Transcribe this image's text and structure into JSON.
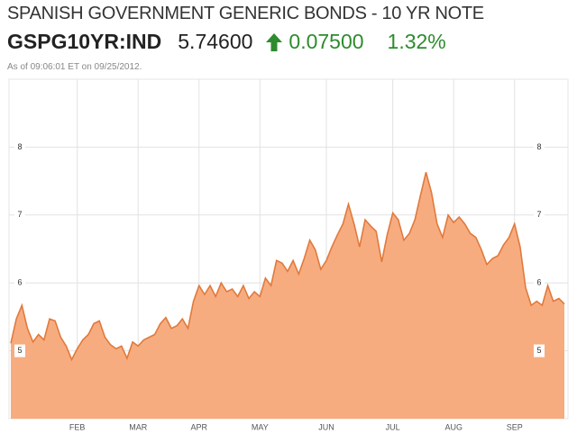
{
  "header": {
    "title": "SPANISH GOVERNMENT GENERIC BONDS - 10 YR NOTE",
    "ticker": "GSPG10YR:IND",
    "price": "5.74600",
    "change": "0.07500",
    "change_percent": "1.32%",
    "as_of": "As of 09:06:01 ET on 09/25/2012."
  },
  "chart_data": {
    "type": "area",
    "color": "#f7ac80",
    "line_color": "#e07a3c",
    "categories": [
      null,
      null,
      null,
      null,
      null,
      null,
      null,
      null,
      null,
      null,
      null,
      null,
      "FEB",
      null,
      null,
      null,
      null,
      null,
      null,
      null,
      null,
      null,
      null,
      "MAR",
      null,
      null,
      null,
      null,
      null,
      null,
      null,
      null,
      null,
      null,
      "APR",
      null,
      null,
      null,
      null,
      null,
      null,
      null,
      null,
      null,
      null,
      "MAY",
      null,
      null,
      null,
      null,
      null,
      null,
      null,
      null,
      null,
      null,
      null,
      "JUN",
      null,
      null,
      null,
      null,
      null,
      null,
      null,
      null,
      null,
      null,
      null,
      "JUL",
      null,
      null,
      null,
      null,
      null,
      null,
      null,
      null,
      null,
      null,
      "AUG",
      null,
      null,
      null,
      null,
      null,
      null,
      null,
      null,
      null,
      null,
      "SEP",
      null,
      null,
      null,
      null,
      null,
      null,
      null,
      null,
      null
    ],
    "values": [
      5.11,
      5.47,
      5.67,
      5.33,
      5.13,
      5.24,
      5.16,
      5.47,
      5.44,
      5.2,
      5.07,
      4.87,
      5.03,
      5.16,
      5.24,
      5.4,
      5.44,
      5.2,
      5.09,
      5.03,
      5.07,
      4.89,
      5.13,
      5.07,
      5.16,
      5.2,
      5.24,
      5.4,
      5.49,
      5.33,
      5.37,
      5.47,
      5.33,
      5.73,
      5.96,
      5.83,
      5.96,
      5.8,
      6.0,
      5.87,
      5.91,
      5.8,
      5.96,
      5.77,
      5.87,
      5.8,
      6.07,
      5.96,
      6.33,
      6.29,
      6.17,
      6.33,
      6.13,
      6.36,
      6.63,
      6.49,
      6.2,
      6.33,
      6.53,
      6.71,
      6.87,
      7.16,
      6.87,
      6.53,
      6.93,
      6.84,
      6.76,
      6.31,
      6.71,
      7.03,
      6.93,
      6.63,
      6.73,
      6.93,
      7.29,
      7.63,
      7.33,
      6.87,
      6.67,
      7.0,
      6.89,
      6.97,
      6.87,
      6.73,
      6.67,
      6.49,
      6.27,
      6.36,
      6.4,
      6.56,
      6.67,
      6.87,
      6.53,
      5.93,
      5.67,
      5.73,
      5.67,
      5.96,
      5.73,
      5.77,
      5.69
    ],
    "ylim": [
      4,
      9
    ],
    "yticks": [
      5,
      6,
      7,
      8
    ],
    "grid": true
  }
}
